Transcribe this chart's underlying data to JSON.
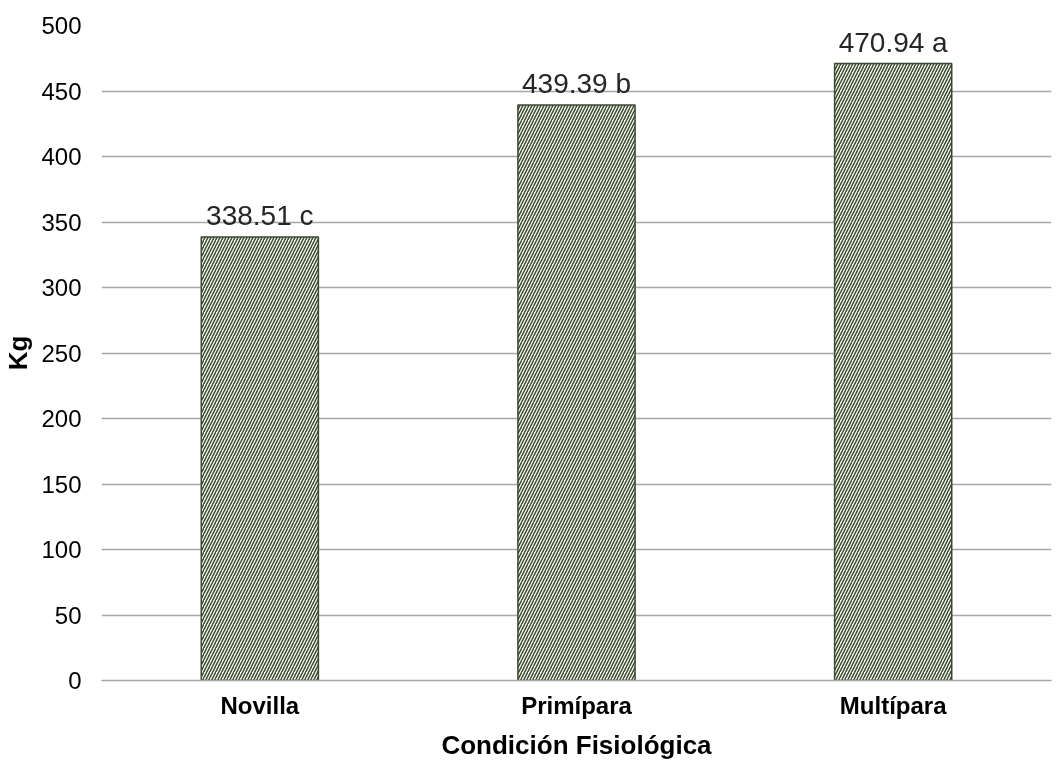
{
  "chart_data": {
    "type": "bar",
    "xlabel": "Condición Fisiológica",
    "ylabel": "Kg",
    "categories": [
      "Novilla",
      "Primípara",
      "Multípara"
    ],
    "values": [
      338.51,
      439.39,
      470.94
    ],
    "value_labels": [
      "338.51 c",
      "439.39 b",
      "470.94 a"
    ],
    "color": "#3a4a2c",
    "ylim": [
      0,
      500
    ],
    "yticks": [
      0,
      50,
      100,
      150,
      200,
      250,
      300,
      350,
      400,
      450,
      500
    ],
    "grid": "y"
  }
}
